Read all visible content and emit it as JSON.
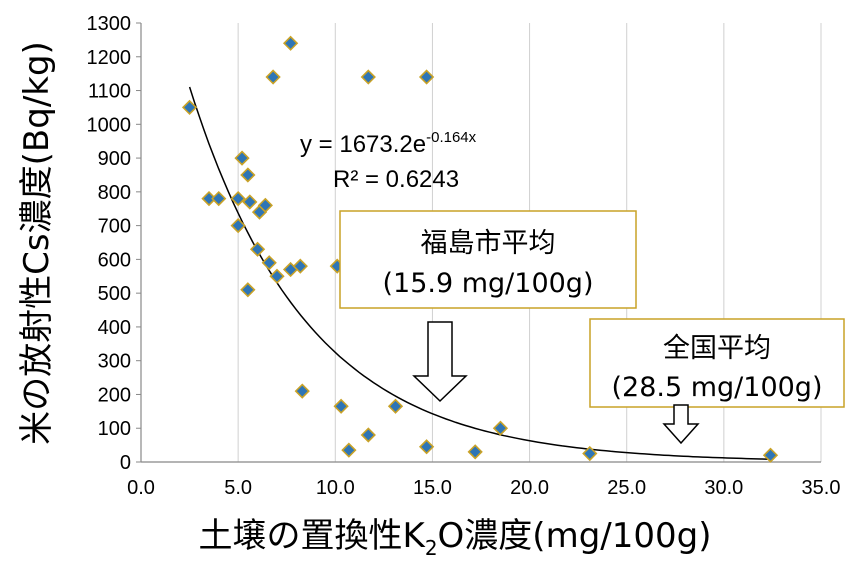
{
  "chart_data": {
    "type": "scatter",
    "xlabel": "土壌の置換性K",
    "xlabel_sub": "2",
    "xlabel_tail": "O濃度(mg/100g)",
    "ylabel": "米の放射性Cs濃度(Bq/kg)",
    "xlim": [
      0.0,
      35.0
    ],
    "ylim": [
      0,
      1300
    ],
    "x_ticks": [
      "0.0",
      "5.0",
      "10.0",
      "15.0",
      "20.0",
      "25.0",
      "30.0",
      "35.0"
    ],
    "y_ticks": [
      "0",
      "100",
      "200",
      "300",
      "400",
      "500",
      "600",
      "700",
      "800",
      "900",
      "1000",
      "1100",
      "1200",
      "1300"
    ],
    "grid": "vertical",
    "marker_color": "#2E75B6",
    "marker_edge": "#C9A227",
    "points": [
      {
        "x": 2.5,
        "y": 1050
      },
      {
        "x": 3.5,
        "y": 780
      },
      {
        "x": 4.0,
        "y": 780
      },
      {
        "x": 5.0,
        "y": 780
      },
      {
        "x": 5.0,
        "y": 700
      },
      {
        "x": 5.2,
        "y": 900
      },
      {
        "x": 5.5,
        "y": 850
      },
      {
        "x": 5.5,
        "y": 510
      },
      {
        "x": 5.6,
        "y": 770
      },
      {
        "x": 6.0,
        "y": 630
      },
      {
        "x": 6.1,
        "y": 740
      },
      {
        "x": 6.4,
        "y": 760
      },
      {
        "x": 6.6,
        "y": 590
      },
      {
        "x": 6.8,
        "y": 1140
      },
      {
        "x": 7.0,
        "y": 550
      },
      {
        "x": 7.7,
        "y": 1240
      },
      {
        "x": 7.7,
        "y": 570
      },
      {
        "x": 8.2,
        "y": 580
      },
      {
        "x": 8.3,
        "y": 210
      },
      {
        "x": 10.1,
        "y": 580
      },
      {
        "x": 10.3,
        "y": 165
      },
      {
        "x": 10.7,
        "y": 35
      },
      {
        "x": 11.7,
        "y": 1140
      },
      {
        "x": 11.7,
        "y": 80
      },
      {
        "x": 13.1,
        "y": 165
      },
      {
        "x": 14.7,
        "y": 1140
      },
      {
        "x": 14.7,
        "y": 45
      },
      {
        "x": 17.2,
        "y": 30
      },
      {
        "x": 18.5,
        "y": 100
      },
      {
        "x": 23.1,
        "y": 25
      },
      {
        "x": 32.4,
        "y": 20
      }
    ],
    "trendline": {
      "type": "exponential",
      "a": 1673.2,
      "b": -0.164,
      "x_range": [
        2.5,
        32.4
      ],
      "equation_prefix": "y = 1673.2e",
      "equation_exp": "-0.164x",
      "r2_text": "R² = 0.6243"
    },
    "annotations": [
      {
        "line1": "福島市平均",
        "line2": "(15.9 mg/100g)",
        "x": 15.9
      },
      {
        "line1": "全国平均",
        "line2": "(28.5 mg/100g)",
        "x": 28.5
      }
    ]
  }
}
